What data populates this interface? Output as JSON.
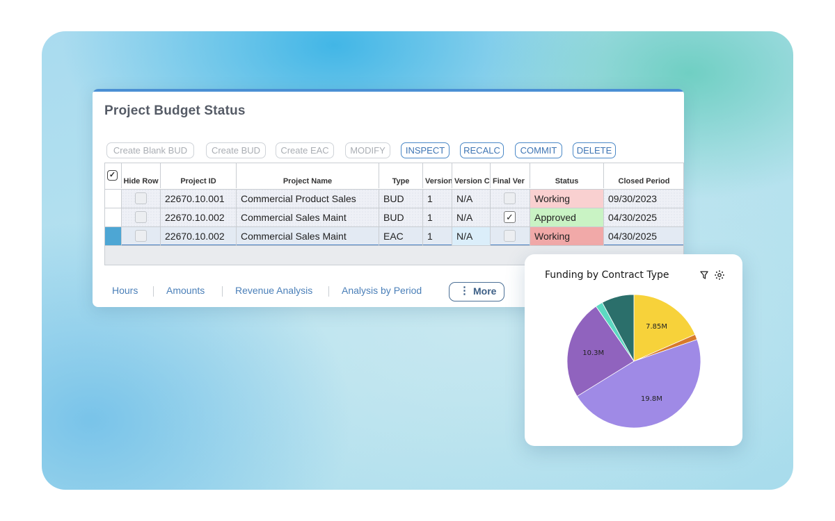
{
  "panel": {
    "title": "Project Budget Status",
    "toolbar": [
      {
        "label": "Create Blank BUD",
        "enabled": false
      },
      {
        "label": "Create BUD",
        "enabled": false
      },
      {
        "label": "Create EAC",
        "enabled": false
      },
      {
        "label": "MODIFY",
        "enabled": false
      },
      {
        "label": "INSPECT",
        "enabled": true
      },
      {
        "label": "RECALC",
        "enabled": true
      },
      {
        "label": "COMMIT",
        "enabled": true
      },
      {
        "label": "DELETE",
        "enabled": true
      }
    ],
    "columns": [
      "Hide Row",
      "Project ID",
      "Project Name",
      "Type",
      "Version",
      "Version C",
      "Final Ver",
      "Status",
      "Closed Period"
    ],
    "rows": [
      {
        "project_id": "22670.10.001",
        "project_name": "Commercial Product Sales",
        "type": "BUD",
        "version": "1",
        "version_c": "N/A",
        "final_ver_checked": false,
        "status": "Working",
        "closed_period": "09/30/2023"
      },
      {
        "project_id": "22670.10.002",
        "project_name": "Commercial Sales Maint",
        "type": "BUD",
        "version": "1",
        "version_c": "N/A",
        "final_ver_checked": true,
        "status": "Approved",
        "closed_period": "04/30/2025"
      },
      {
        "project_id": "22670.10.002",
        "project_name": "Commercial Sales Maint",
        "type": "EAC",
        "version": "1",
        "version_c": "N/A",
        "final_ver_checked": false,
        "status": "Working",
        "closed_period": "04/30/2025"
      }
    ],
    "tabs": [
      "Hours",
      "Amounts",
      "Revenue Analysis",
      "Analysis by Period"
    ],
    "more_label": "More",
    "colors": {
      "accent": "#4a8fd4",
      "working": "#f9d0d0",
      "approved": "#c9f3c4"
    }
  },
  "chart_data": {
    "type": "pie",
    "title": "Funding by Contract Type",
    "slices": [
      {
        "value": 7.85,
        "label": "7.85M",
        "color": "#f7d23a"
      },
      {
        "value": 0.55,
        "label": "",
        "color": "#d77a2c"
      },
      {
        "value": 19.8,
        "label": "19.8M",
        "color": "#9f8ae6"
      },
      {
        "value": 10.3,
        "label": "10.3M",
        "color": "#9063be"
      },
      {
        "value": 0.75,
        "label": "",
        "color": "#5dd9c2"
      },
      {
        "value": 3.35,
        "label": "",
        "color": "#2b6f6b"
      }
    ],
    "icons": [
      "filter-icon",
      "settings-icon"
    ]
  }
}
